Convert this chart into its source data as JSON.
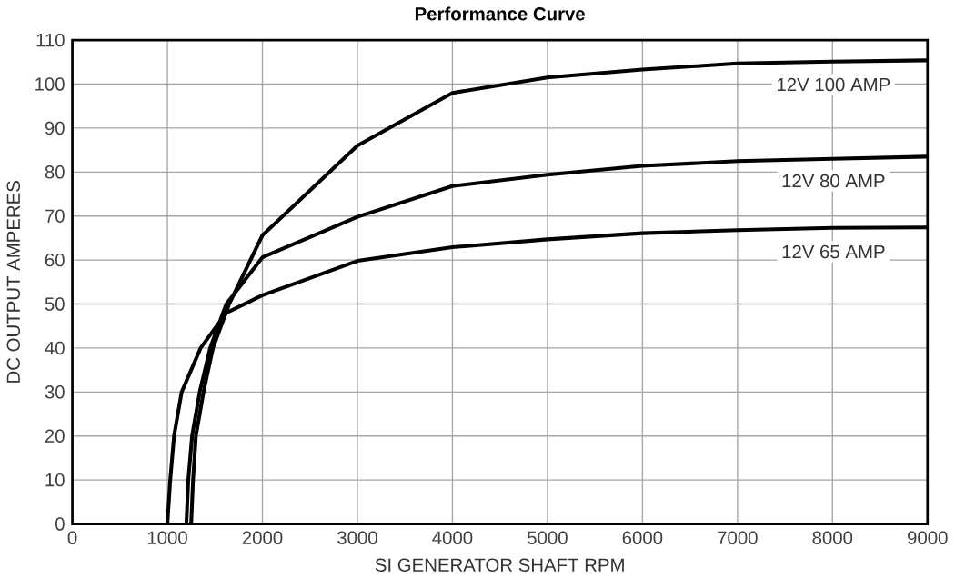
{
  "chart_data": {
    "type": "line",
    "title": "Performance Curve",
    "xlabel": "SI GENERATOR SHAFT RPM",
    "ylabel": "DC OUTPUT AMPERES",
    "xlim": [
      0,
      9000
    ],
    "ylim": [
      0,
      110
    ],
    "xticks": [
      0,
      1000,
      2000,
      3000,
      4000,
      5000,
      6000,
      7000,
      8000,
      9000
    ],
    "yticks": [
      0,
      10,
      20,
      30,
      40,
      50,
      60,
      70,
      80,
      90,
      100,
      110
    ],
    "grid": true,
    "legend": false,
    "marker": "none",
    "line_style": "solid",
    "series": [
      {
        "name": "12V 100 AMP",
        "color": "#000000",
        "x": [
          1250,
          1270,
          1300,
          1380,
          1480,
          1650,
          2000,
          3000,
          4000,
          5000,
          6000,
          7000,
          8000,
          9000
        ],
        "values": [
          0,
          10,
          20,
          30,
          40,
          50,
          65.6,
          86,
          98,
          101.5,
          103.3,
          104.7,
          105.1,
          105.4
        ]
      },
      {
        "name": "12V 80 AMP",
        "color": "#000000",
        "x": [
          1200,
          1220,
          1260,
          1340,
          1450,
          1620,
          2000,
          3000,
          4000,
          5000,
          6000,
          7000,
          8000,
          9000
        ],
        "values": [
          0,
          10,
          20,
          30,
          40,
          50,
          60.6,
          69.8,
          76.8,
          79.4,
          81.4,
          82.5,
          83,
          83.5
        ]
      },
      {
        "name": "12V 65 AMP",
        "color": "#000000",
        "x": [
          1000,
          1030,
          1070,
          1150,
          1350,
          1620,
          2000,
          3000,
          4000,
          5000,
          6000,
          7000,
          8000,
          9000
        ],
        "values": [
          0,
          10,
          20,
          30,
          40,
          48,
          52,
          59.8,
          62.9,
          64.7,
          66.1,
          66.8,
          67.3,
          67.4
        ]
      }
    ]
  }
}
